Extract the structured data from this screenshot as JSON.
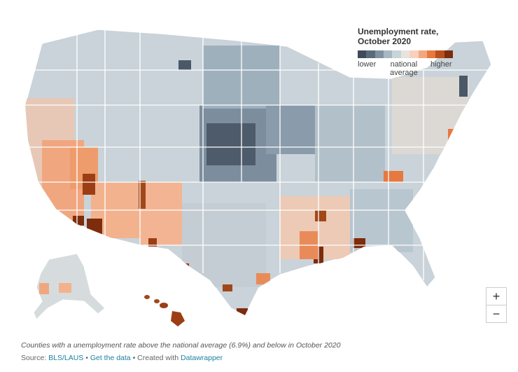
{
  "legend": {
    "title_line1": "Unemployment rate,",
    "title_line2": "October 2020",
    "label_lower": "lower",
    "label_mid_line1": "national",
    "label_mid_line2": "average",
    "label_higher": "higher",
    "scale_colors": [
      "#3f4b5a",
      "#5a6a7b",
      "#7f91a1",
      "#a7b7c3",
      "#c8d3da",
      "#e7e4df",
      "#f8d1bc",
      "#f4a77e",
      "#e7783f",
      "#b9501c",
      "#7d2c0c"
    ]
  },
  "colors": {
    "land_lower": "#b6c4cd",
    "land_mid": "#dfe3e3",
    "land_higher": "#f1a47c",
    "land_high": "#b9501c",
    "land_dark": "#4b5969",
    "state_border": "#ffffff"
  },
  "zoom": {
    "in_label": "+",
    "out_label": "−"
  },
  "caption": "Counties with a unemployment rate above the national average (6.9%) and below in October 2020",
  "source": {
    "prefix": "Source:",
    "link1": "BLS/LAUS",
    "sep1": "•",
    "link2": "Get the data",
    "sep2": "• Created with",
    "link3": "Datawrapper"
  }
}
